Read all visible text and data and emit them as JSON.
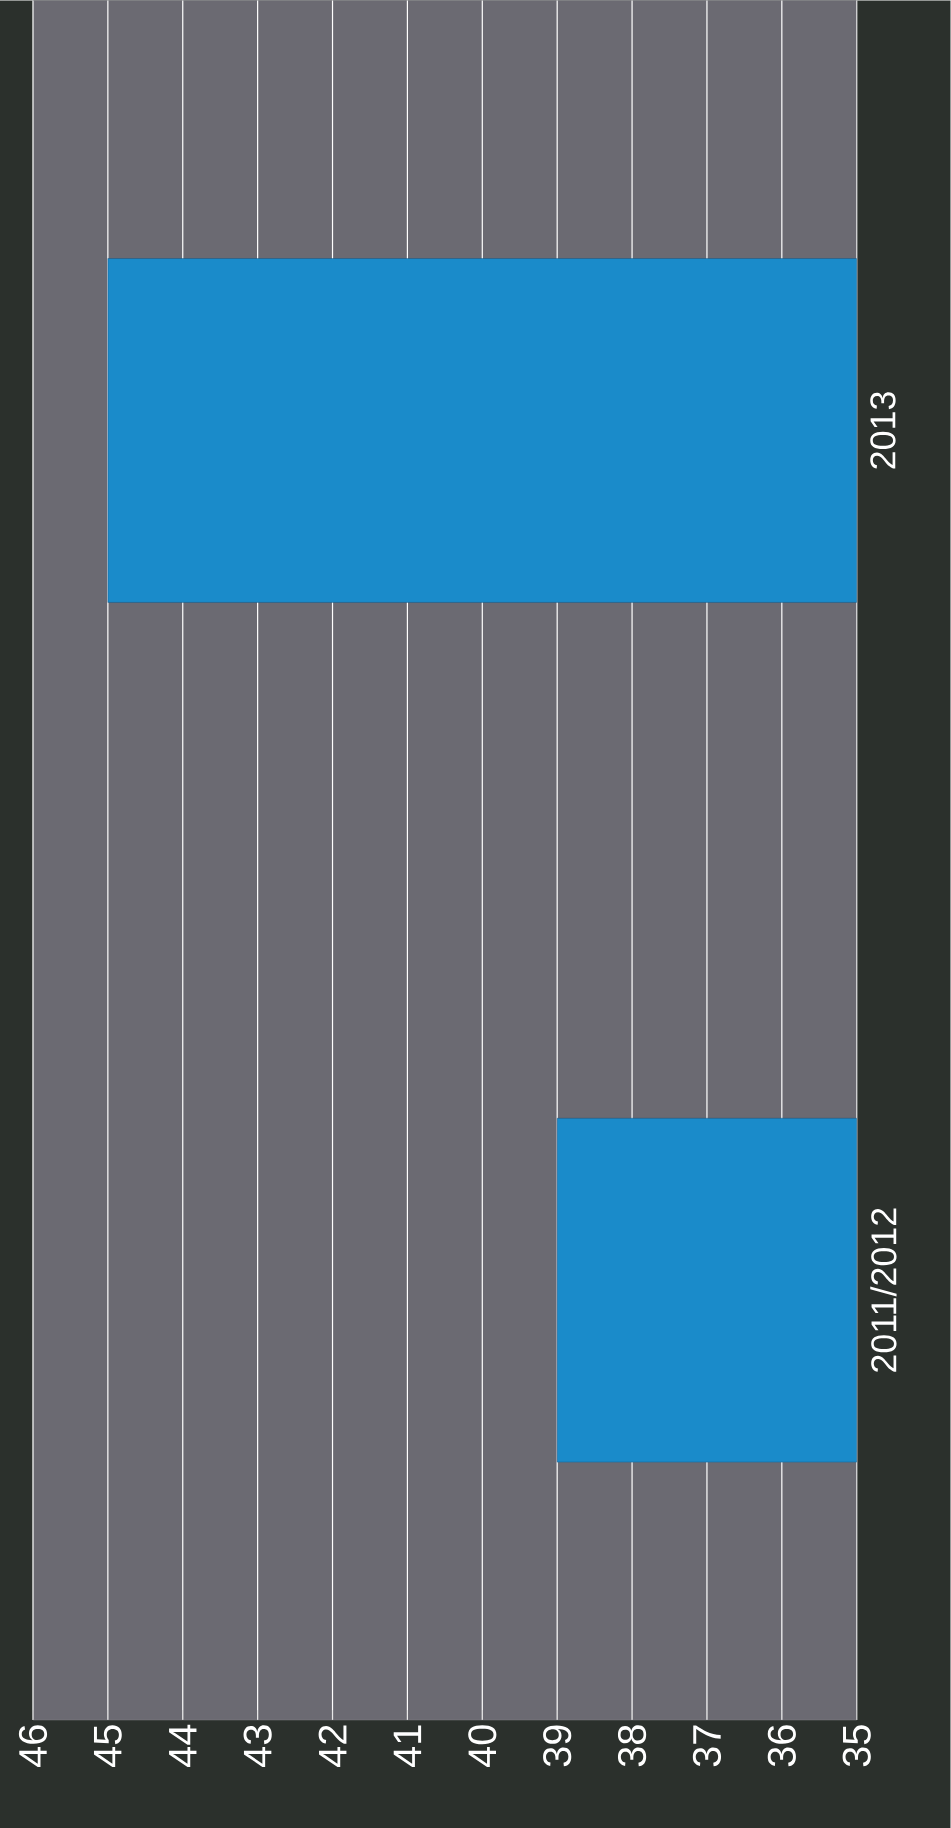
{
  "chart_data": {
    "type": "bar",
    "orientation": "horizontal",
    "categories": [
      "2013",
      "2011/2012"
    ],
    "values": [
      45,
      39
    ],
    "color": "#1a8bca",
    "xlim": [
      46,
      35
    ],
    "xticks": [
      46,
      45,
      44,
      43,
      42,
      41,
      40,
      39,
      38,
      37,
      36,
      35
    ],
    "grid": "x"
  }
}
